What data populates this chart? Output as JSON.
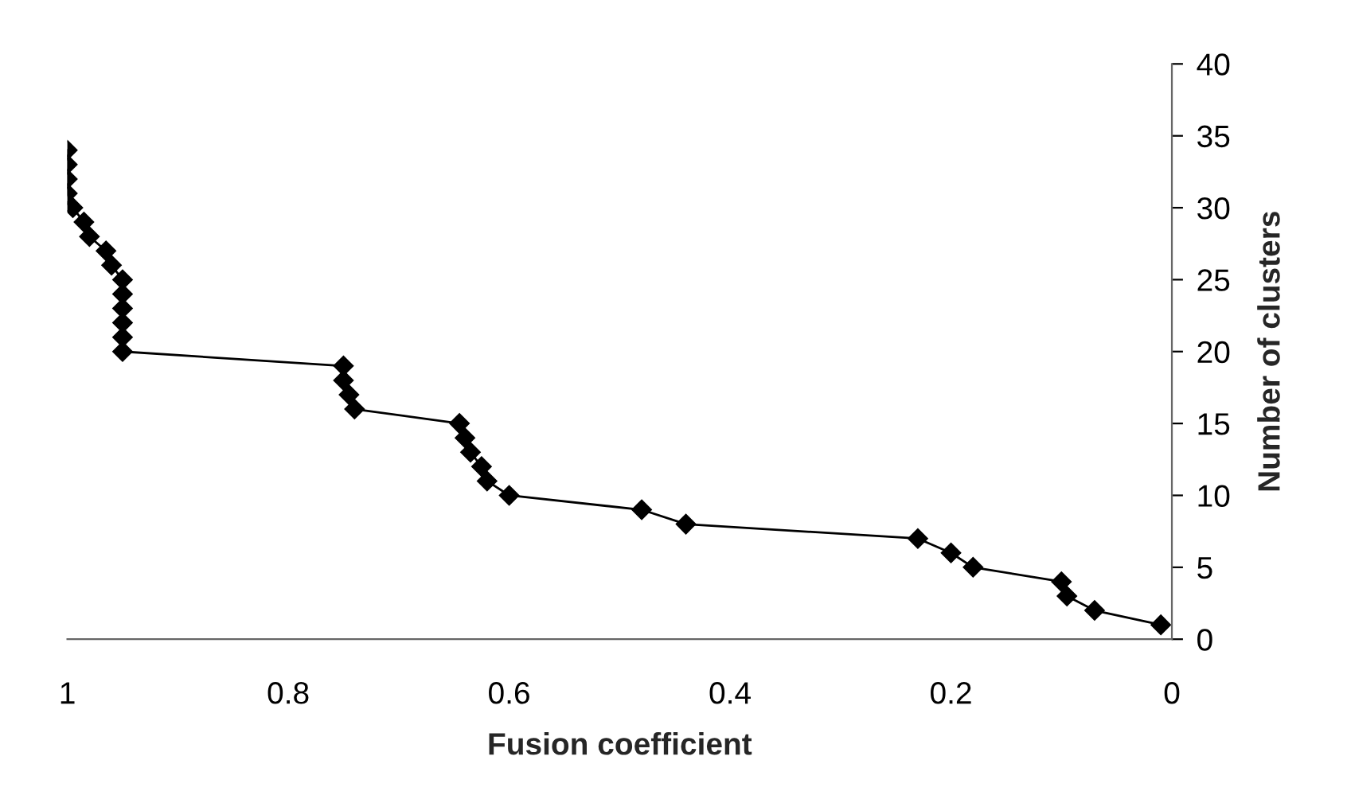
{
  "chart_data": {
    "type": "line",
    "xlabel": "Fusion coefficient",
    "ylabel": "Number of clusters",
    "x": [
      0.01,
      0.07,
      0.095,
      0.1,
      0.18,
      0.2,
      0.23,
      0.44,
      0.48,
      0.6,
      0.62,
      0.625,
      0.635,
      0.64,
      0.645,
      0.74,
      0.745,
      0.75,
      0.75,
      0.95,
      0.95,
      0.95,
      0.95,
      0.95,
      0.95,
      0.96,
      0.965,
      0.98,
      0.985,
      0.995,
      1.0,
      1.0,
      1.0,
      1.0
    ],
    "series": [
      {
        "color": "#000000",
        "values": [
          1,
          2,
          3,
          4,
          5,
          6,
          7,
          8,
          9,
          10,
          11,
          12,
          13,
          14,
          15,
          16,
          17,
          18,
          19,
          20,
          21,
          22,
          23,
          24,
          25,
          26,
          27,
          28,
          29,
          30,
          31,
          32,
          33,
          34
        ]
      }
    ],
    "xlim": [
      1,
      0
    ],
    "xticks": [
      1,
      0.8,
      0.6,
      0.4,
      0.2,
      0
    ],
    "ylim": [
      0,
      40
    ],
    "yticks": [
      0,
      5,
      10,
      15,
      20,
      25,
      30,
      35,
      40
    ],
    "marker": "diamond",
    "line_style": "solid",
    "grid": false,
    "legend": false
  }
}
